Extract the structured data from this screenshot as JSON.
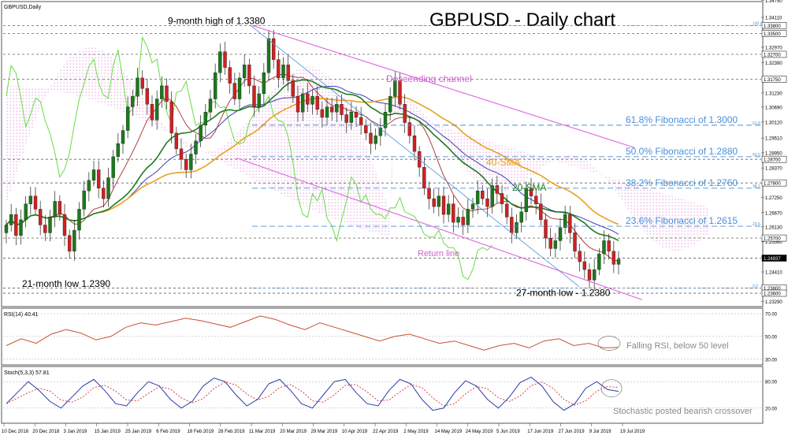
{
  "header": {
    "symbol_label": "GBPUSD,Daily",
    "title": "GBPUSD - Daily chart"
  },
  "colors": {
    "bull": "#1a7a1a",
    "bear": "#d22020",
    "sma20": "#1e7a1e",
    "sma40": "#e8a020",
    "channel": "#e070e0",
    "cloud": "#e38fd8",
    "lagging": "#66dd44",
    "tenkan": "#b04040",
    "kijun": "#4040b0",
    "fib": "#4a90d8",
    "rsi": "#c85030",
    "stoch_main": "#2a3aa8",
    "stoch_signal": "#d03030"
  },
  "chart_data": {
    "type": "candlestick",
    "price_axis": {
      "ylim": [
        1.2315,
        1.3465
      ],
      "ticks": [
        "1.34750",
        "1.34110",
        "1.33500",
        "1.32970",
        "1.32390",
        "1.31810",
        "1.31230",
        "1.30690",
        "1.30120",
        "1.29510",
        "1.28950",
        "1.28370",
        "1.27790",
        "1.27250",
        "1.26670",
        "1.26130",
        "1.25560",
        "1.24990",
        "1.24410",
        "1.23860",
        "1.23290"
      ],
      "marked_levels": [
        {
          "label": "1.33800",
          "value": 1.338
        },
        {
          "label": "1.33500",
          "value": 1.335
        },
        {
          "label": "1.32700",
          "value": 1.327
        },
        {
          "label": "1.31750",
          "value": 1.3175
        },
        {
          "label": "1.28700",
          "value": 1.287
        },
        {
          "label": "1.27800",
          "value": 1.278
        },
        {
          "label": "1.25700",
          "value": 1.257
        },
        {
          "label": "1.24937",
          "value": 1.24937
        },
        {
          "label": "1.23800",
          "value": 1.238
        },
        {
          "label": "1.23600",
          "value": 1.236
        }
      ],
      "current_price": "1.24937"
    },
    "date_labels": [
      "10 Dec 2018",
      "20 Dec 2018",
      "3 Jan 2019",
      "15 Jan 2019",
      "25 Jan 2019",
      "6 Feb 2019",
      "18 Feb 2019",
      "28 Feb 2019",
      "11 Mar 2019",
      "20 Mar 2019",
      "29 Mar 2019",
      "10 Apr 2019",
      "22 Apr 2019",
      "2 May 2019",
      "14 May 2019",
      "24 May 2019",
      "5 Jun 2019",
      "17 Jun 2019",
      "27 Jun 2019",
      "9 Jul 2019",
      "19 Jul 2019"
    ],
    "closes": [
      1.262,
      1.266,
      1.258,
      1.264,
      1.27,
      1.273,
      1.268,
      1.262,
      1.259,
      1.265,
      1.271,
      1.266,
      1.258,
      1.252,
      1.26,
      1.268,
      1.275,
      1.279,
      1.283,
      1.276,
      1.272,
      1.28,
      1.288,
      1.293,
      1.298,
      1.307,
      1.311,
      1.318,
      1.314,
      1.308,
      1.302,
      1.31,
      1.315,
      1.309,
      1.297,
      1.291,
      1.287,
      1.283,
      1.289,
      1.294,
      1.3,
      1.305,
      1.31,
      1.32,
      1.328,
      1.322,
      1.316,
      1.31,
      1.318,
      1.323,
      1.315,
      1.307,
      1.312,
      1.32,
      1.333,
      1.325,
      1.318,
      1.323,
      1.317,
      1.311,
      1.305,
      1.312,
      1.308,
      1.311,
      1.306,
      1.303,
      1.307,
      1.305,
      1.308,
      1.304,
      1.301,
      1.305,
      1.303,
      1.3,
      1.297,
      1.293,
      1.296,
      1.299,
      1.305,
      1.311,
      1.317,
      1.308,
      1.301,
      1.296,
      1.29,
      1.284,
      1.276,
      1.272,
      1.269,
      1.273,
      1.266,
      1.27,
      1.263,
      1.265,
      1.262,
      1.268,
      1.27,
      1.275,
      1.272,
      1.269,
      1.277,
      1.274,
      1.27,
      1.265,
      1.259,
      1.263,
      1.267,
      1.276,
      1.273,
      1.27,
      1.264,
      1.257,
      1.253,
      1.256,
      1.261,
      1.266,
      1.259,
      1.252,
      1.248,
      1.245,
      1.241,
      1.245,
      1.251,
      1.256,
      1.252,
      1.247,
      1.249
    ],
    "candles_count": 127,
    "overlays": [
      {
        "name": "40-SMA"
      },
      {
        "name": "20-SMA"
      },
      {
        "name": "Descending channel"
      },
      {
        "name": "Return line"
      },
      {
        "name": "Ichimoku cloud"
      }
    ],
    "fibonacci": [
      {
        "label": "61.8% Fibonacci of 1.3000",
        "value": 1.3,
        "tag": "61.8"
      },
      {
        "label": "50.0% Fibonacci of 1.2880",
        "value": 1.288,
        "tag": "50.0"
      },
      {
        "label": "38.2% Fibonacci of 1.2760",
        "value": 1.276,
        "tag": "38.2"
      },
      {
        "label": "23.6% Fibonacci of 1.2615",
        "value": 1.2615,
        "tag": "23.6"
      }
    ],
    "fib_extremes": [
      {
        "tag": "100.0",
        "value": 1.338
      },
      {
        "tag": "0.0",
        "value": 1.238
      }
    ],
    "annotations": [
      {
        "text": "9-month high of 1.3380",
        "value": 1.338
      },
      {
        "text": "21-month low 1.2390",
        "value": 1.239
      },
      {
        "text": "27-month low - 1.2380",
        "value": 1.238
      },
      {
        "text": "Descending channel"
      },
      {
        "text": "Return line"
      },
      {
        "text": "40-SMA"
      },
      {
        "text": "20-SMA"
      }
    ],
    "rsi": {
      "label": "RSI(14) 40.41",
      "ylim": [
        30,
        70
      ],
      "ticks": [
        "70.00",
        "50.00",
        "30.00"
      ],
      "values": [
        42,
        48,
        44,
        52,
        56,
        53,
        47,
        50,
        58,
        62,
        60,
        63,
        66,
        64,
        61,
        58,
        63,
        68,
        65,
        60,
        56,
        62,
        58,
        54,
        50,
        46,
        50,
        52,
        48,
        44,
        46,
        42,
        38,
        42,
        44,
        40,
        46,
        48,
        42,
        44,
        40,
        40.41
      ],
      "annotation": "Falling RSI, below 50 level"
    },
    "stochastic": {
      "label": "Stoch(5,3,3) 57.81",
      "ylim": [
        0,
        100
      ],
      "ticks": [
        "80.00",
        "20.00"
      ],
      "main": [
        30,
        55,
        80,
        60,
        35,
        20,
        45,
        70,
        85,
        60,
        30,
        25,
        55,
        80,
        70,
        40,
        20,
        35,
        70,
        88,
        80,
        50,
        25,
        40,
        75,
        85,
        60,
        30,
        20,
        50,
        80,
        85,
        55,
        30,
        25,
        60,
        85,
        75,
        40,
        15,
        20,
        55,
        82,
        70,
        40,
        20,
        45,
        78,
        90,
        70,
        35,
        15,
        30,
        65,
        80,
        62,
        57.81
      ],
      "annotation": "Stochastic posted bearish crossover"
    }
  }
}
